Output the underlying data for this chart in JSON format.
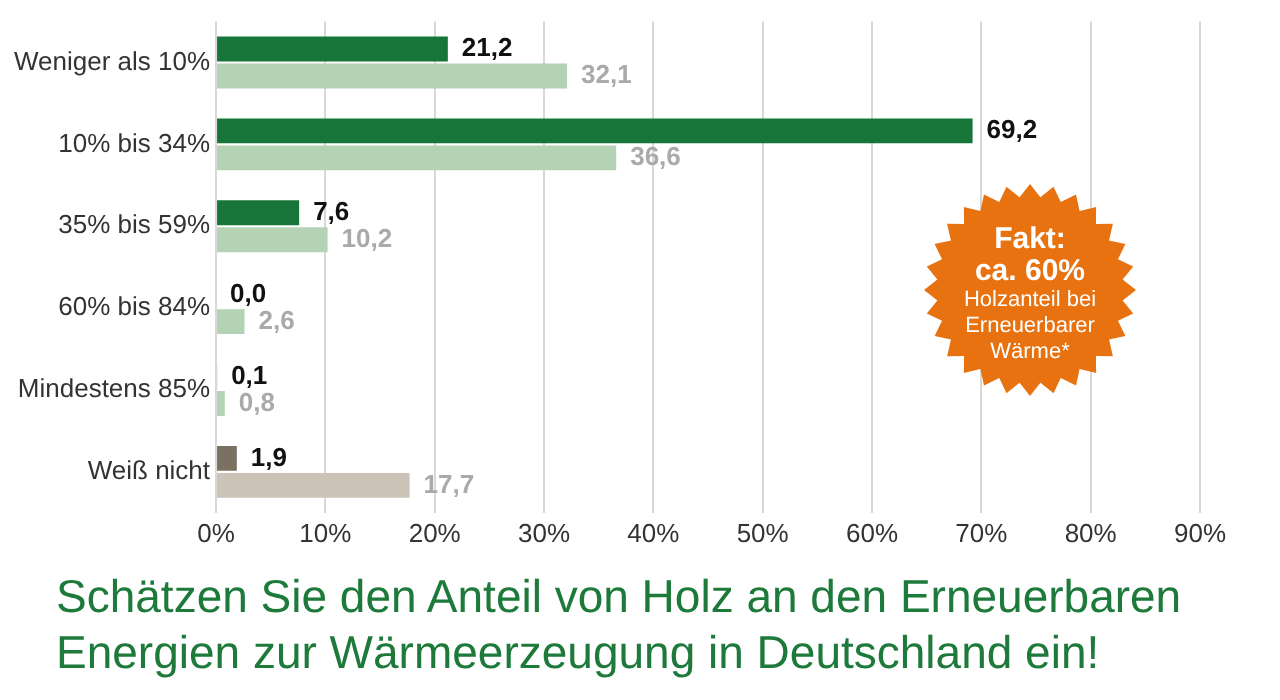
{
  "chart_data": {
    "type": "bar",
    "orientation": "horizontal",
    "title": "Schätzen Sie den Anteil von Holz an den Erneuerbaren Energien zur Wärmeerzeugung in Deutschland ein!",
    "categories": [
      "Weniger als 10%",
      "10% bis 34%",
      "35% bis 59%",
      "60% bis 84%",
      "Mindestens 85%",
      "Weiß nicht"
    ],
    "series": [
      {
        "colors": [
          "#17753a",
          "#17753a",
          "#17753a",
          "#17753a",
          "#17753a",
          "#7b7163"
        ],
        "values": [
          21.2,
          69.2,
          7.6,
          0.0,
          0.1,
          1.9
        ],
        "value_labels": [
          "21,2",
          "69,2",
          "7,6",
          "0,0",
          "0,1",
          "1,9"
        ]
      },
      {
        "colors": [
          "#b4d2b4",
          "#b4d2b4",
          "#b4d2b4",
          "#b4d2b4",
          "#b4d2b4",
          "#cbc3b7"
        ],
        "values": [
          32.1,
          36.6,
          10.2,
          2.6,
          0.8,
          17.7
        ],
        "value_labels": [
          "32,1",
          "36,6",
          "10,2",
          "2,6",
          "0,8",
          "17,7"
        ]
      }
    ],
    "xlim": [
      0,
      90
    ],
    "xticks": [
      {
        "value": 0,
        "label": "0%"
      },
      {
        "value": 10,
        "label": "10%"
      },
      {
        "value": 20,
        "label": "20%"
      },
      {
        "value": 30,
        "label": "30%"
      },
      {
        "value": 40,
        "label": "40%"
      },
      {
        "value": 50,
        "label": "50%"
      },
      {
        "value": 60,
        "label": "60%"
      },
      {
        "value": 70,
        "label": "70%"
      },
      {
        "value": 80,
        "label": "80%"
      },
      {
        "value": 90,
        "label": "90%"
      }
    ],
    "grid": "x",
    "legend": false,
    "annotations": [
      "Fakt:",
      "ca. 60%",
      "Holzanteil bei Erneuerbarer Wärme*"
    ]
  }
}
